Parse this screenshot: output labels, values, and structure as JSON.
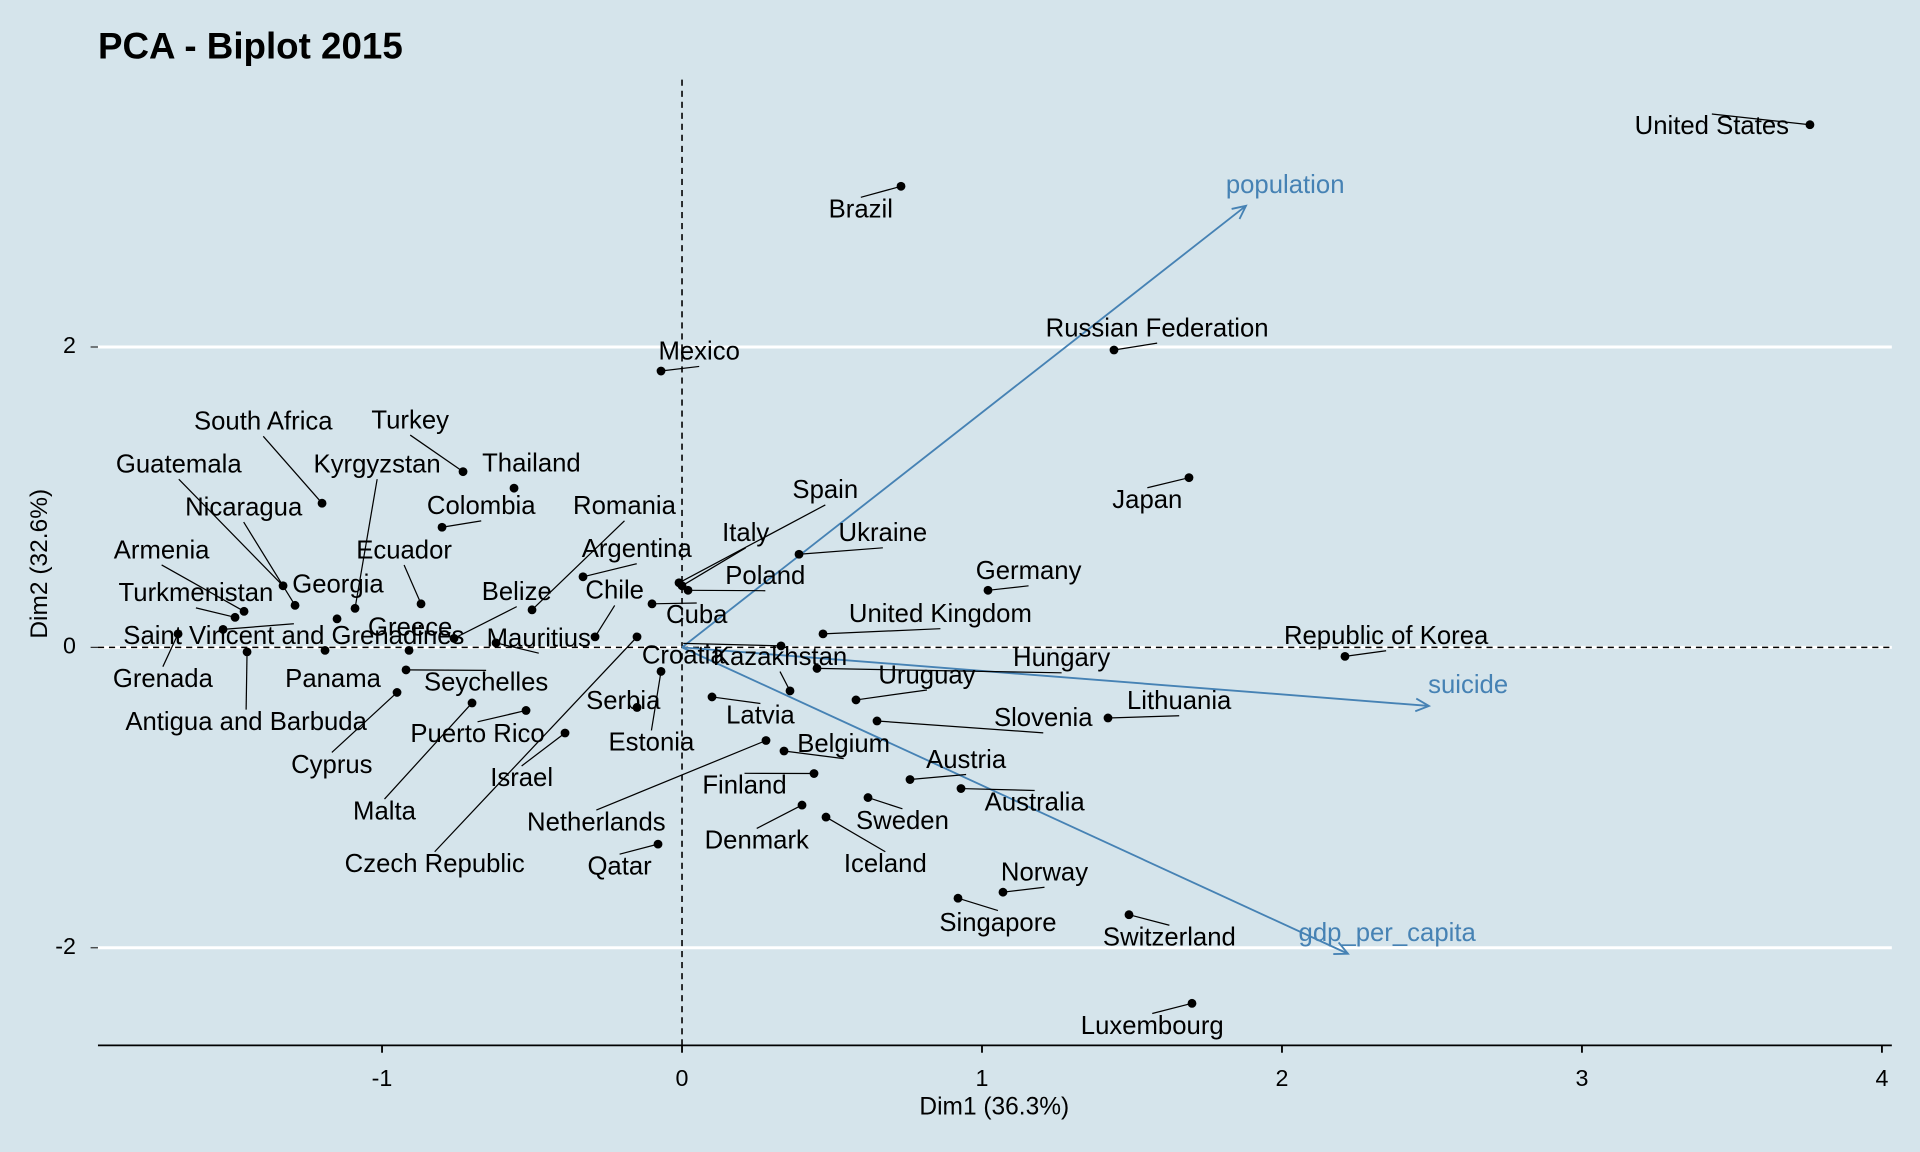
{
  "chart_data": {
    "type": "biplot",
    "title": "PCA - Biplot 2015",
    "x_label": "Dim1 (36.3%)",
    "y_label": "Dim2 (32.6%)",
    "labels": [
      "United States",
      "Brazil",
      "Russian Federation",
      "Mexico",
      "Japan",
      "Germany",
      "Republic of Korea",
      "Lithuania",
      "Slovenia",
      "Hungary",
      "United Kingdom",
      "Uruguay",
      "Ukraine",
      "Spain",
      "Italy",
      "Poland",
      "Cuba",
      "Kazakhstan",
      "Croatia",
      "Latvia",
      "Estonia",
      "Serbia",
      "Belgium",
      "Austria",
      "Australia",
      "Finland",
      "Sweden",
      "Denmark",
      "Iceland",
      "Norway",
      "Singapore",
      "Switzerland",
      "Luxembourg",
      "Netherlands",
      "Qatar",
      "Czech Republic",
      "Argentina",
      "Romania",
      "Belize",
      "Chile",
      "Mauritius",
      "Thailand",
      "Turkey",
      "Colombia",
      "Ecuador",
      "Greece",
      "Kyrgyzstan",
      "Georgia",
      "South Africa",
      "Guatemala",
      "Nicaragua",
      "Armenia",
      "Turkmenistan",
      "Saint Vincent and Grenadines",
      "Grenada",
      "Antigua and Barbuda",
      "Panama",
      "Seychelles",
      "Cyprus",
      "Puerto Rico",
      "Israel",
      "Malta"
    ],
    "x": [
      3.76,
      0.73,
      1.44,
      -0.07,
      1.69,
      1.02,
      2.21,
      1.42,
      0.65,
      0.45,
      0.47,
      0.58,
      0.39,
      -0.01,
      0,
      0.02,
      -0.1,
      0.36,
      0.33,
      0.1,
      -0.07,
      -0.15,
      0.34,
      0.76,
      0.93,
      0.44,
      0.62,
      0.4,
      0.48,
      1.07,
      0.92,
      1.49,
      1.7,
      0.28,
      -0.08,
      -0.15,
      -0.33,
      -0.5,
      -0.76,
      -0.29,
      -0.62,
      -0.56,
      -0.73,
      -0.8,
      -0.87,
      -0.91,
      -1.09,
      -1.15,
      -1.2,
      -1.33,
      -1.29,
      -1.46,
      -1.49,
      -1.53,
      -1.68,
      -1.45,
      -1.19,
      -0.92,
      -0.95,
      -0.52,
      -0.39,
      -0.7
    ],
    "values": [
      3.48,
      3.07,
      1.98,
      1.84,
      1.13,
      0.38,
      -0.06,
      -0.47,
      -0.49,
      -0.14,
      0.09,
      -0.35,
      0.62,
      0.43,
      0.41,
      0.38,
      0.29,
      -0.29,
      0.01,
      -0.33,
      -0.16,
      -0.4,
      -0.69,
      -0.88,
      -0.94,
      -0.84,
      -1.0,
      -1.05,
      -1.13,
      -1.63,
      -1.67,
      -1.78,
      -2.37,
      -0.62,
      -1.31,
      0.07,
      0.47,
      0.25,
      0.06,
      0.07,
      0.03,
      1.06,
      1.17,
      0.8,
      0.29,
      -0.02,
      0.26,
      0.19,
      0.96,
      0.41,
      0.28,
      0.24,
      0.2,
      0.12,
      0.09,
      -0.03,
      -0.02,
      -0.15,
      -0.3,
      -0.42,
      -0.57,
      -0.37
    ],
    "point_color": "#000000",
    "vectors": [
      {
        "name": "population",
        "x": 1.88,
        "y": 2.94
      },
      {
        "name": "suicide",
        "x": 2.49,
        "y": -0.39
      },
      {
        "name": "gdp_per_capita",
        "x": 2.22,
        "y": -2.04
      }
    ],
    "vector_color": "#4682b4",
    "xlim": [
      -1.947,
      4.033
    ],
    "ylim": [
      -2.65,
      3.78
    ],
    "xticks": [
      -1,
      0,
      1,
      2,
      3,
      4
    ],
    "yticks": [
      -2,
      0,
      2
    ],
    "grid": "y",
    "reference_lines": true
  }
}
